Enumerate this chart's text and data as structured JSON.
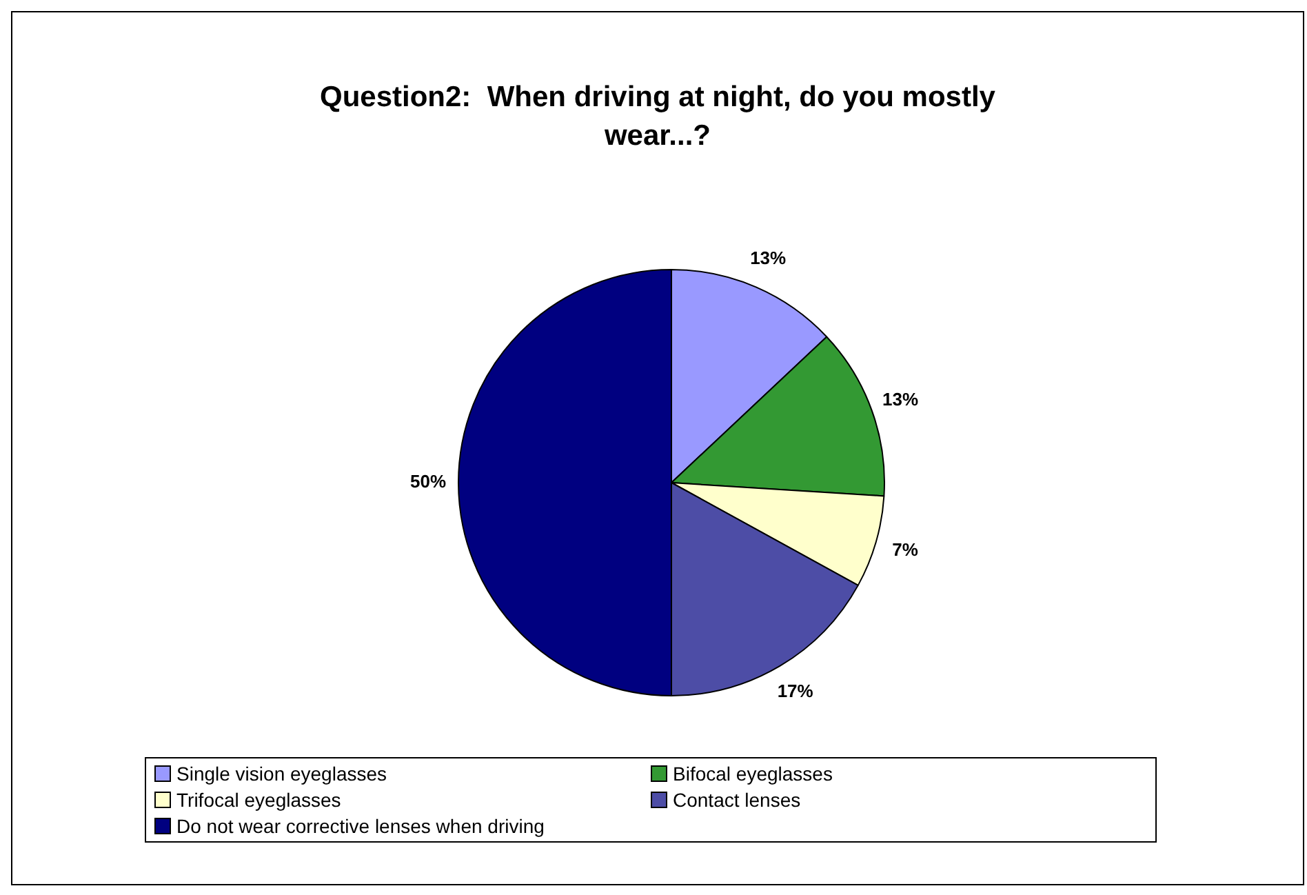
{
  "chart_data": {
    "type": "pie",
    "title": "Question2:  When driving at night, do you mostly wear...?",
    "categories": [
      "Single vision eyeglasses",
      "Bifocal eyeglasses",
      "Trifocal eyeglasses",
      "Contact lenses",
      "Do not wear corrective lenses when driving"
    ],
    "values": [
      13,
      13,
      7,
      17,
      50
    ],
    "colors": [
      "#9999ff",
      "#339933",
      "#ffffcc",
      "#4d4da6",
      "#000080"
    ],
    "value_labels": [
      "13%",
      "13%",
      "7%",
      "17%",
      "50%"
    ],
    "legend": "bottom"
  }
}
